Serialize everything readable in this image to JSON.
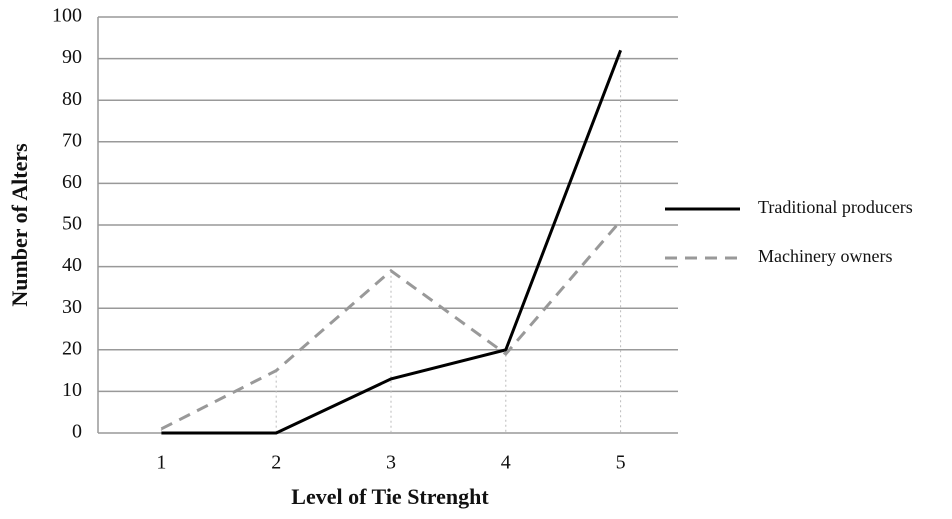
{
  "chart_data": {
    "type": "line",
    "x_label": "Level of Tie Strenght",
    "y_label": "Number of Alters",
    "categories": [
      "1",
      "2",
      "3",
      "4",
      "5"
    ],
    "series": [
      {
        "name": "Traditional producers",
        "color": "#000000",
        "style": "solid",
        "values": [
          0,
          0,
          13,
          20,
          92
        ]
      },
      {
        "name": "Machinery owners",
        "color": "#999999",
        "style": "dashed",
        "values": [
          1,
          15,
          39,
          19,
          51
        ]
      }
    ],
    "ylim": [
      0,
      100
    ],
    "yticks": [
      0,
      10,
      20,
      30,
      40,
      50,
      60,
      70,
      80,
      90,
      100
    ],
    "grid": true,
    "drop_lines": true,
    "legend": "right"
  }
}
